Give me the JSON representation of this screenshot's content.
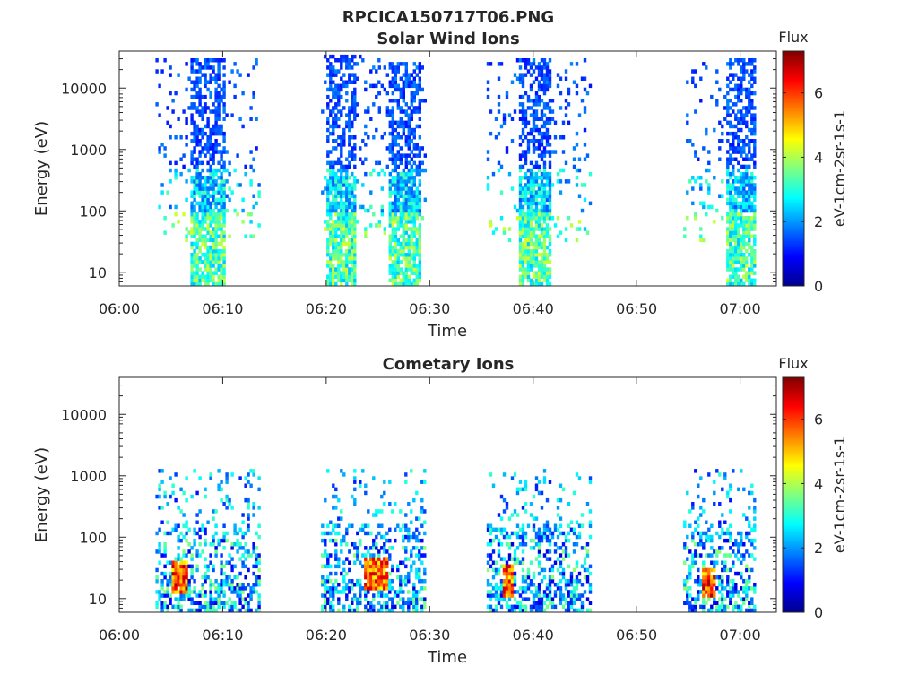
{
  "figure_title": "RPCICA150717T06.PNG",
  "colorbar": {
    "title": "Flux",
    "unit_label": "eV-1cm-2sr-1s-1",
    "ticks": [
      "0",
      "2",
      "4",
      "6"
    ],
    "range": [
      0,
      7.3
    ],
    "colormap": "jet"
  },
  "chart_data": [
    {
      "type": "heatmap",
      "title": "Solar Wind Ions",
      "xlabel": "Time",
      "ylabel": "Energy (eV)",
      "x_ticks": [
        "06:00",
        "06:10",
        "06:20",
        "06:30",
        "06:40",
        "06:50",
        "07:00"
      ],
      "x_range_minutes": [
        0,
        63.5
      ],
      "y_ticks": [
        "10",
        "100",
        "1000",
        "10000"
      ],
      "y_range": [
        6,
        40000
      ],
      "y_scale": "log",
      "clusters": [
        {
          "t": [
            3.5,
            13.5
          ],
          "core": [
            6.8,
            10.2
          ],
          "e": [
            6,
            30000
          ],
          "peak_e": 3000,
          "peak_flux": 1.0,
          "low_e_flux": 3.5
        },
        {
          "t": [
            19.5,
            25.0
          ],
          "core": [
            19.8,
            22.8
          ],
          "e": [
            6,
            35000
          ],
          "peak_e": 5000,
          "peak_flux": 1.0,
          "low_e_flux": 3.5
        },
        {
          "t": [
            25.0,
            29.5
          ],
          "core": [
            26.0,
            29.0
          ],
          "e": [
            6,
            25000
          ],
          "peak_e": 5000,
          "peak_flux": 1.0,
          "low_e_flux": 3.5
        },
        {
          "t": [
            35.5,
            45.5
          ],
          "core": [
            38.5,
            41.5
          ],
          "e": [
            6,
            30000
          ],
          "peak_e": 3000,
          "peak_flux": 1.0,
          "low_e_flux": 3.5
        },
        {
          "t": [
            54.5,
            61.5
          ],
          "core": [
            58.5,
            61.3
          ],
          "e": [
            6,
            30000
          ],
          "peak_e": 3000,
          "peak_flux": 1.0,
          "low_e_flux": 3.5
        }
      ]
    },
    {
      "type": "heatmap",
      "title": "Cometary Ions",
      "xlabel": "Time",
      "ylabel": "Energy (eV)",
      "x_ticks": [
        "06:00",
        "06:10",
        "06:20",
        "06:30",
        "06:40",
        "06:50",
        "07:00"
      ],
      "x_range_minutes": [
        0,
        63.5
      ],
      "y_ticks": [
        "10",
        "100",
        "1000",
        "10000"
      ],
      "y_range": [
        6,
        40000
      ],
      "y_scale": "log",
      "clusters": [
        {
          "t": [
            3.5,
            13.5
          ],
          "e": [
            6,
            1300
          ],
          "hot_t": [
            4.8,
            6.5
          ],
          "hot_e": [
            12,
            40
          ],
          "peak_flux": 7.0
        },
        {
          "t": [
            19.5,
            29.5
          ],
          "e": [
            6,
            1200
          ],
          "hot_t": [
            23.5,
            26.0
          ],
          "hot_e": [
            14,
            45
          ],
          "peak_flux": 6.8
        },
        {
          "t": [
            35.5,
            45.5
          ],
          "e": [
            6,
            1200
          ],
          "hot_t": [
            36.8,
            38.0
          ],
          "hot_e": [
            10,
            35
          ],
          "peak_flux": 7.0
        },
        {
          "t": [
            54.5,
            61.5
          ],
          "e": [
            6,
            1300
          ],
          "hot_t": [
            56.2,
            57.5
          ],
          "hot_e": [
            10,
            30
          ],
          "peak_flux": 7.0
        }
      ]
    }
  ]
}
